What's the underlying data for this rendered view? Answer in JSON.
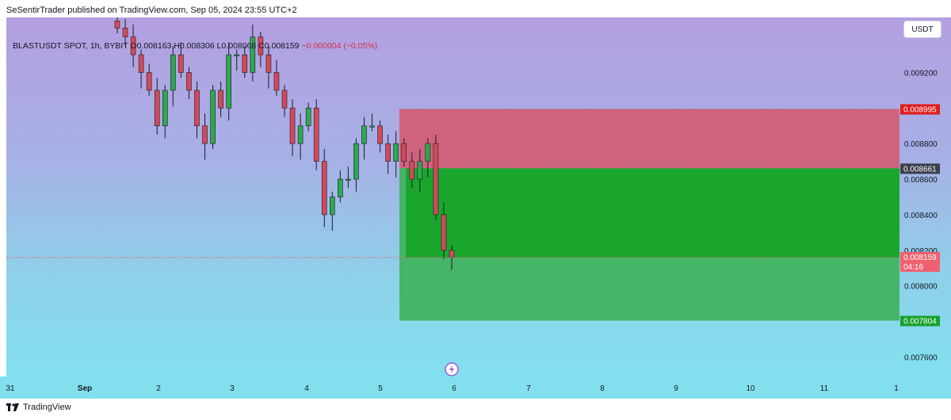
{
  "header": {
    "publish_text": "SeSentirTrader published on TradingView.com, Sep 05, 2024 23:55 UTC+2",
    "symbol": "BLASTUSDT SPOT, 1h, BYBIT",
    "ohlc": "O0.008163 H0.008306 L0.008068 C0.008159",
    "change": "−0.000004 (−0.05%)",
    "currency": "USDT"
  },
  "footer": {
    "brand": "TradingView"
  },
  "colors": {
    "up": "#2fa84f",
    "down": "#d24a5a",
    "stop_zone": "#d6566b",
    "target_zone_dark": "#1aa62c",
    "target_zone_light": "#3db35a"
  },
  "position_tool": {
    "stop_label": "0.008995",
    "entry_label": "0.008661",
    "target_label": "0.007804",
    "stop_price": 0.008995,
    "entry_price": 0.008661,
    "target_price": 0.007804,
    "start_date": "2024-09-05",
    "end_date": "2024-09-12"
  },
  "last_price": {
    "label": "0.008159",
    "countdown": "04:16",
    "value": 0.008159
  },
  "chart_data": {
    "type": "candlestick",
    "x_tick_labels": [
      "31",
      "Sep",
      "2",
      "3",
      "4",
      "5",
      "6",
      "7",
      "8",
      "9",
      "10",
      "11",
      "1"
    ],
    "y_tick_labels": [
      "0.009200",
      "0.008800",
      "0.008600",
      "0.008400",
      "0.008200",
      "0.008000",
      "0.007600"
    ],
    "y_ticks": [
      0.0092,
      0.0088,
      0.0086,
      0.0084,
      0.0082,
      0.008,
      0.0076
    ],
    "ylim": [
      0.00749,
      0.00951
    ],
    "series_close": [
      0.00945,
      0.0094,
      0.0093,
      0.0092,
      0.0091,
      0.0089,
      0.0091,
      0.0093,
      0.0092,
      0.0091,
      0.0089,
      0.0088,
      0.0091,
      0.009,
      0.0093,
      0.0093,
      0.0092,
      0.0094,
      0.0093,
      0.0092,
      0.0091,
      0.009,
      0.0088,
      0.0089,
      0.009,
      0.0087,
      0.0084,
      0.0085,
      0.0086,
      0.0086,
      0.0088,
      0.0089,
      0.0089,
      0.0088,
      0.0087,
      0.0088,
      0.0087,
      0.0086,
      0.0087,
      0.0088,
      0.0084,
      0.0082,
      0.00816
    ]
  }
}
